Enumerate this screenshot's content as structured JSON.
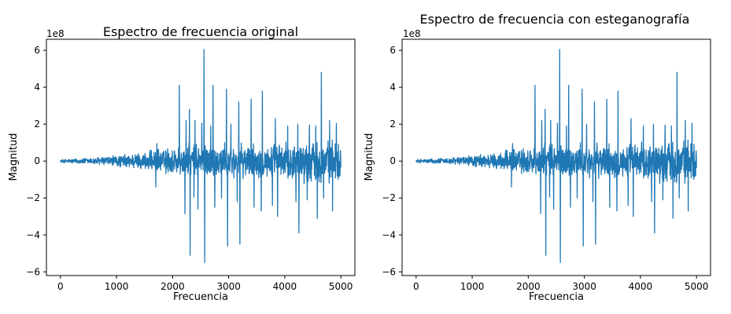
{
  "chart_data": [
    {
      "type": "line",
      "title": "Espectro de frecuencia original",
      "xlabel": "Frecuencia",
      "ylabel": "Magnitud",
      "y_scale_label": "1e8",
      "xlim": [
        -250,
        5250
      ],
      "ylim": [
        -6.2,
        6.6
      ],
      "xticks": [
        0,
        1000,
        2000,
        3000,
        4000,
        5000
      ],
      "yticks": [
        -6,
        -4,
        -2,
        0,
        2,
        4,
        6
      ],
      "x_range": [
        0,
        5000
      ],
      "grid": false,
      "series_color": "#1f77b4",
      "approximate_envelope": [
        {
          "x": 0,
          "amp": 0.1
        },
        {
          "x": 500,
          "amp": 0.2
        },
        {
          "x": 1000,
          "amp": 0.35
        },
        {
          "x": 1500,
          "amp": 0.55
        },
        {
          "x": 2000,
          "amp": 0.9
        },
        {
          "x": 2500,
          "amp": 1.1
        },
        {
          "x": 3000,
          "amp": 1.0
        },
        {
          "x": 3500,
          "amp": 1.0
        },
        {
          "x": 4000,
          "amp": 1.1
        },
        {
          "x": 4500,
          "amp": 1.35
        },
        {
          "x": 5000,
          "amp": 1.2
        }
      ],
      "spikes": [
        {
          "x": 1700,
          "y": -1.4
        },
        {
          "x": 1720,
          "y": 0.95
        },
        {
          "x": 2120,
          "y": 4.1
        },
        {
          "x": 2220,
          "y": -2.85
        },
        {
          "x": 2240,
          "y": 2.2
        },
        {
          "x": 2300,
          "y": 2.8
        },
        {
          "x": 2310,
          "y": -5.1
        },
        {
          "x": 2380,
          "y": -1.95
        },
        {
          "x": 2400,
          "y": 2.2
        },
        {
          "x": 2450,
          "y": -2.6
        },
        {
          "x": 2520,
          "y": 2.05
        },
        {
          "x": 2555,
          "y": 6.05
        },
        {
          "x": 2570,
          "y": -5.5
        },
        {
          "x": 2680,
          "y": 1.9
        },
        {
          "x": 2720,
          "y": 4.1
        },
        {
          "x": 2750,
          "y": -2.5
        },
        {
          "x": 2870,
          "y": -2.0
        },
        {
          "x": 2960,
          "y": 3.9
        },
        {
          "x": 2980,
          "y": -4.6
        },
        {
          "x": 3040,
          "y": 2.0
        },
        {
          "x": 3150,
          "y": -2.2
        },
        {
          "x": 3180,
          "y": 3.2
        },
        {
          "x": 3200,
          "y": -4.5
        },
        {
          "x": 3400,
          "y": 3.35
        },
        {
          "x": 3450,
          "y": -2.5
        },
        {
          "x": 3580,
          "y": -2.7
        },
        {
          "x": 3600,
          "y": 3.8
        },
        {
          "x": 3780,
          "y": -2.4
        },
        {
          "x": 3830,
          "y": 2.3
        },
        {
          "x": 3870,
          "y": -3.0
        },
        {
          "x": 4050,
          "y": 1.9
        },
        {
          "x": 4200,
          "y": -2.2
        },
        {
          "x": 4230,
          "y": 2.0
        },
        {
          "x": 4250,
          "y": -3.9
        },
        {
          "x": 4400,
          "y": -2.1
        },
        {
          "x": 4440,
          "y": 1.95
        },
        {
          "x": 4550,
          "y": 1.9
        },
        {
          "x": 4580,
          "y": -3.1
        },
        {
          "x": 4650,
          "y": 4.8
        },
        {
          "x": 4690,
          "y": -2.0
        },
        {
          "x": 4800,
          "y": 2.2
        },
        {
          "x": 4850,
          "y": -2.7
        },
        {
          "x": 4920,
          "y": 2.05
        }
      ]
    },
    {
      "type": "line",
      "title": "Espectro de frecuencia con esteganografía",
      "xlabel": "Frecuencia",
      "ylabel": "Magnitud",
      "y_scale_label": "1e8",
      "xlim": [
        -250,
        5250
      ],
      "ylim": [
        -6.2,
        6.6
      ],
      "xticks": [
        0,
        1000,
        2000,
        3000,
        4000,
        5000
      ],
      "yticks": [
        -6,
        -4,
        -2,
        0,
        2,
        4,
        6
      ],
      "x_range": [
        0,
        5000
      ],
      "grid": false,
      "series_color": "#1f77b4",
      "approximate_envelope": [
        {
          "x": 0,
          "amp": 0.1
        },
        {
          "x": 500,
          "amp": 0.2
        },
        {
          "x": 1000,
          "amp": 0.35
        },
        {
          "x": 1500,
          "amp": 0.55
        },
        {
          "x": 2000,
          "amp": 0.9
        },
        {
          "x": 2500,
          "amp": 1.1
        },
        {
          "x": 3000,
          "amp": 1.0
        },
        {
          "x": 3500,
          "amp": 1.0
        },
        {
          "x": 4000,
          "amp": 1.1
        },
        {
          "x": 4500,
          "amp": 1.35
        },
        {
          "x": 5000,
          "amp": 1.2
        }
      ],
      "spikes": [
        {
          "x": 1700,
          "y": -1.4
        },
        {
          "x": 1720,
          "y": 0.95
        },
        {
          "x": 2120,
          "y": 4.1
        },
        {
          "x": 2220,
          "y": -2.85
        },
        {
          "x": 2240,
          "y": 2.2
        },
        {
          "x": 2300,
          "y": 2.8
        },
        {
          "x": 2310,
          "y": -5.1
        },
        {
          "x": 2380,
          "y": -1.95
        },
        {
          "x": 2400,
          "y": 2.2
        },
        {
          "x": 2450,
          "y": -2.6
        },
        {
          "x": 2520,
          "y": 2.05
        },
        {
          "x": 2555,
          "y": 6.05
        },
        {
          "x": 2570,
          "y": -5.5
        },
        {
          "x": 2680,
          "y": 1.9
        },
        {
          "x": 2720,
          "y": 4.1
        },
        {
          "x": 2750,
          "y": -2.5
        },
        {
          "x": 2870,
          "y": -2.0
        },
        {
          "x": 2960,
          "y": 3.9
        },
        {
          "x": 2980,
          "y": -4.6
        },
        {
          "x": 3040,
          "y": 2.0
        },
        {
          "x": 3150,
          "y": -2.2
        },
        {
          "x": 3180,
          "y": 3.2
        },
        {
          "x": 3200,
          "y": -4.5
        },
        {
          "x": 3400,
          "y": 3.35
        },
        {
          "x": 3450,
          "y": -2.5
        },
        {
          "x": 3580,
          "y": -2.7
        },
        {
          "x": 3600,
          "y": 3.8
        },
        {
          "x": 3780,
          "y": -2.4
        },
        {
          "x": 3830,
          "y": 2.3
        },
        {
          "x": 3870,
          "y": -3.0
        },
        {
          "x": 4050,
          "y": 1.9
        },
        {
          "x": 4200,
          "y": -2.2
        },
        {
          "x": 4230,
          "y": 2.0
        },
        {
          "x": 4250,
          "y": -3.9
        },
        {
          "x": 4400,
          "y": -2.1
        },
        {
          "x": 4440,
          "y": 1.95
        },
        {
          "x": 4550,
          "y": 1.9
        },
        {
          "x": 4580,
          "y": -3.1
        },
        {
          "x": 4650,
          "y": 4.8
        },
        {
          "x": 4690,
          "y": -2.0
        },
        {
          "x": 4800,
          "y": 2.2
        },
        {
          "x": 4850,
          "y": -2.7
        },
        {
          "x": 4920,
          "y": 2.05
        }
      ]
    }
  ]
}
